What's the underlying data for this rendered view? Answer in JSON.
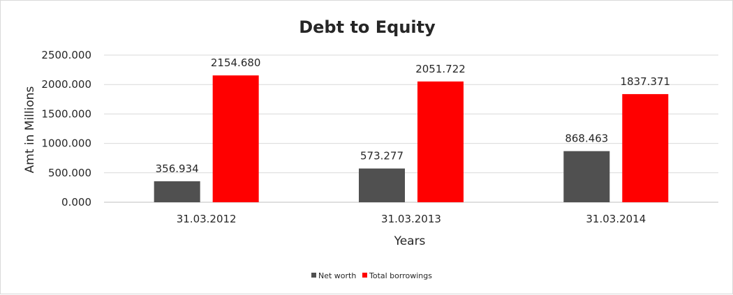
{
  "chart_data": {
    "type": "bar",
    "title": "Debt to Equity",
    "xlabel": "Years",
    "ylabel": "Amt in Millions",
    "categories": [
      "31.03.2012",
      "31.03.2013",
      "31.03.2014"
    ],
    "series": [
      {
        "name": "Net worth",
        "values": [
          356.934,
          573.277,
          868.463
        ],
        "labels": [
          "356.934",
          "573.277",
          "868.463"
        ],
        "color": "#505050"
      },
      {
        "name": "Total borrowings",
        "values": [
          2154.68,
          2051.722,
          1837.371
        ],
        "labels": [
          "2154.680",
          "2051.722",
          "1837.371"
        ],
        "color": "#ff0000"
      }
    ],
    "ylim": [
      0,
      2500
    ],
    "yticks": [
      0,
      500,
      1000,
      1500,
      2000,
      2500
    ],
    "ytick_labels": [
      "0.000",
      "500.000",
      "1000.000",
      "1500.000",
      "2000.000",
      "2500.000"
    ],
    "grid": true,
    "legend_position": "bottom"
  }
}
